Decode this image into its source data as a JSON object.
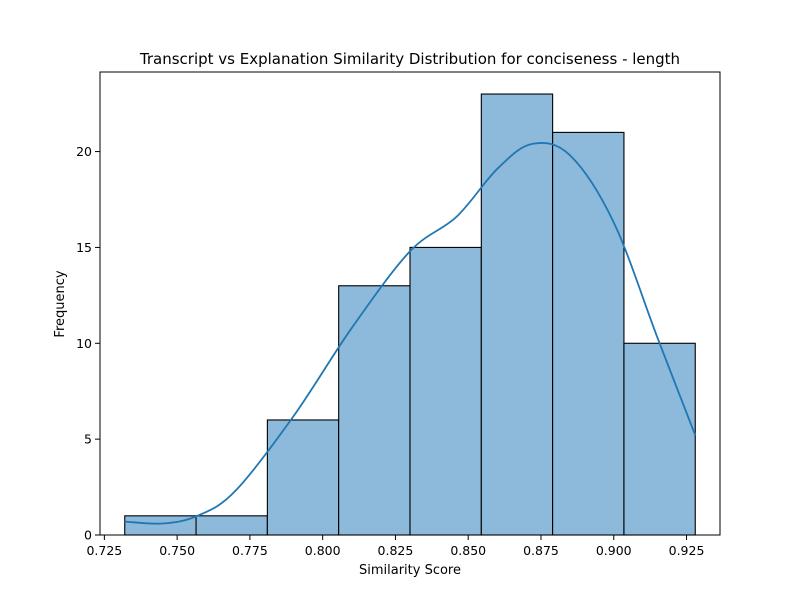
{
  "chart_data": {
    "type": "bar",
    "subtype": "histogram-with-kde",
    "title": "Transcript vs Explanation Similarity Distribution for conciseness - length",
    "xlabel": "Similarity Score",
    "ylabel": "Frequency",
    "xlim": [
      0.7235,
      0.9365
    ],
    "ylim": [
      0,
      24.15
    ],
    "grid": false,
    "bin_edges": [
      0.732,
      0.7565,
      0.781,
      0.8055,
      0.83,
      0.8545,
      0.879,
      0.9035,
      0.928
    ],
    "counts": [
      1,
      1,
      6,
      13,
      15,
      23,
      21,
      10
    ],
    "kde": {
      "x": [
        0.732,
        0.745,
        0.757,
        0.77,
        0.79,
        0.81,
        0.83,
        0.846,
        0.86,
        0.872,
        0.885,
        0.9,
        0.915,
        0.928
      ],
      "y": [
        0.7,
        0.6,
        1.0,
        2.3,
        6.2,
        10.8,
        14.8,
        16.6,
        19.1,
        20.4,
        19.8,
        16.3,
        10.3,
        5.2
      ]
    },
    "xticks": [
      0.725,
      0.75,
      0.775,
      0.8,
      0.825,
      0.85,
      0.875,
      0.9,
      0.925
    ],
    "xtick_labels": [
      "0.725",
      "0.750",
      "0.775",
      "0.800",
      "0.825",
      "0.850",
      "0.875",
      "0.900",
      "0.925"
    ],
    "yticks": [
      0,
      5,
      10,
      15,
      20
    ],
    "ytick_labels": [
      "0",
      "5",
      "10",
      "15",
      "20"
    ],
    "colors": {
      "bar_fill": "#8db9da",
      "bar_edge": "#000000",
      "kde_line": "#1f77b4"
    }
  }
}
